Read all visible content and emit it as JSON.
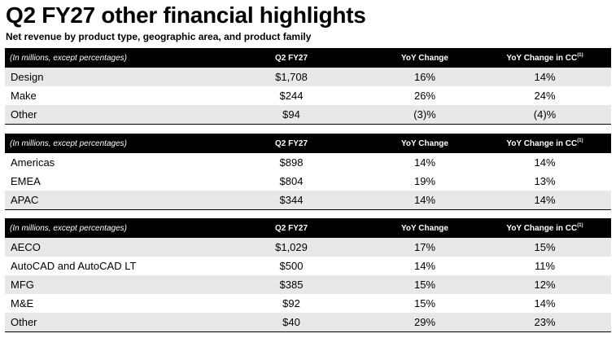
{
  "title": "Q2 FY27 other financial highlights",
  "subtitle": "Net revenue by product type, geographic area, and product family",
  "tables": [
    {
      "header": {
        "label": "(In millions, except percentages)",
        "col1": "Q2 FY27",
        "col2": "YoY Change",
        "col3": "YoY Change in CC",
        "col3_note": "(1)"
      },
      "rows": [
        {
          "label": "Design",
          "q2": "$1,708",
          "yoy": "16%",
          "cc": "14%"
        },
        {
          "label": "Make",
          "q2": "$244",
          "yoy": "26%",
          "cc": "24%"
        },
        {
          "label": "Other",
          "q2": "$94",
          "yoy": "(3)%",
          "cc": "(4)%"
        }
      ]
    },
    {
      "header": {
        "label": "(In millions, except percentages)",
        "col1": "Q2 FY27",
        "col2": "YoY Change",
        "col3": "YoY Change in CC",
        "col3_note": "(1)"
      },
      "rows": [
        {
          "label": "Americas",
          "q2": "$898",
          "yoy": "14%",
          "cc": "14%"
        },
        {
          "label": "EMEA",
          "q2": "$804",
          "yoy": "19%",
          "cc": "13%"
        },
        {
          "label": "APAC",
          "q2": "$344",
          "yoy": "14%",
          "cc": "14%"
        }
      ]
    },
    {
      "header": {
        "label": "(In millions, except percentages)",
        "col1": "Q2 FY27",
        "col2": "YoY Change",
        "col3": "YoY Change in CC",
        "col3_note": "(1)"
      },
      "rows": [
        {
          "label": "AECO",
          "q2": "$1,029",
          "yoy": "17%",
          "cc": "15%"
        },
        {
          "label": "AutoCAD and AutoCAD LT",
          "q2": "$500",
          "yoy": "14%",
          "cc": "11%"
        },
        {
          "label": "MFG",
          "q2": "$385",
          "yoy": "15%",
          "cc": "12%"
        },
        {
          "label": "M&E",
          "q2": "$92",
          "yoy": "15%",
          "cc": "14%"
        },
        {
          "label": "Other",
          "q2": "$40",
          "yoy": "29%",
          "cc": "23%"
        }
      ]
    }
  ]
}
